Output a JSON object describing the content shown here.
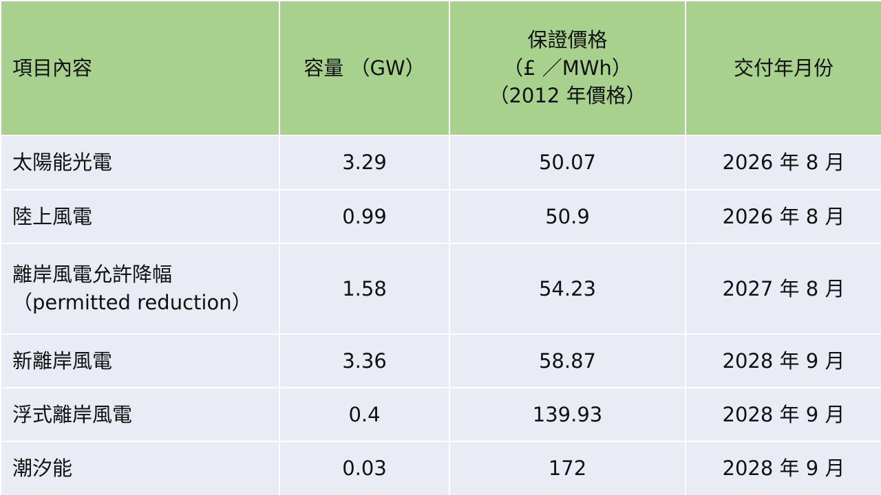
{
  "table": {
    "header": [
      "項目內容",
      "容量 （GW）",
      [
        "保證價格",
        "（£ ／MWh）",
        "（2012 年價格）"
      ],
      "交付年月份"
    ],
    "rows": [
      [
        "太陽能光電",
        "3.29",
        "50.07",
        "2026 年 8 月"
      ],
      [
        "陸上風電",
        "0.99",
        "50.9",
        "2026 年 8 月"
      ],
      [
        [
          "離岸風電允許降幅",
          "（permitted reduction）"
        ],
        "1.58",
        "54.23",
        "2027 年 8 月"
      ],
      [
        "新離岸風電",
        "3.36",
        "58.87",
        "2028 年 9 月"
      ],
      [
        "浮式離岸風電",
        "0.4",
        "139.93",
        "2028 年 9 月"
      ],
      [
        "潮汐能",
        "0.03",
        "172",
        "2028 年 9 月"
      ]
    ]
  }
}
